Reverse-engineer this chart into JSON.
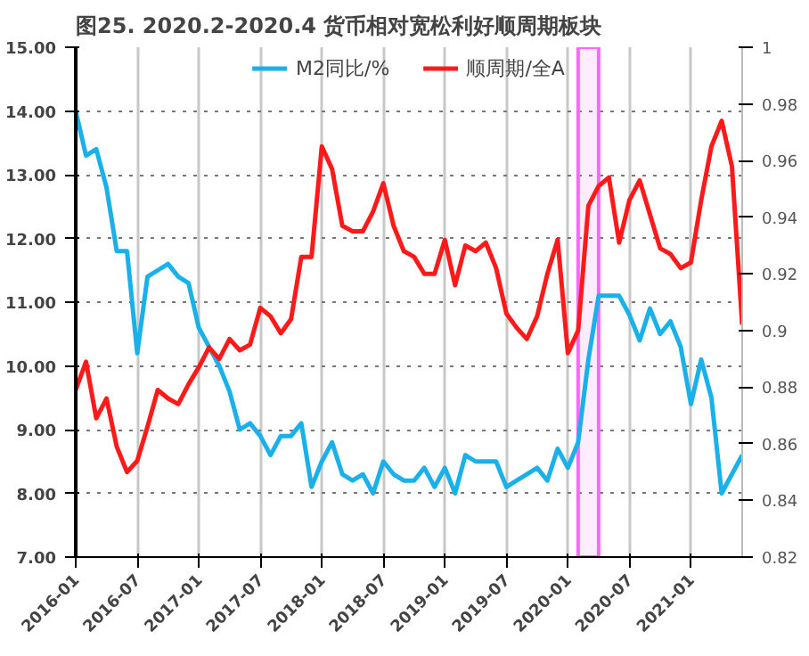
{
  "chart_data": {
    "type": "line",
    "title": "图25. 2020.2-2020.4 货币相对宽松利好顺周期板块",
    "x": [
      "2016-01",
      "2016-02",
      "2016-03",
      "2016-04",
      "2016-05",
      "2016-06",
      "2016-07",
      "2016-08",
      "2016-09",
      "2016-10",
      "2016-11",
      "2016-12",
      "2017-01",
      "2017-02",
      "2017-03",
      "2017-04",
      "2017-05",
      "2017-06",
      "2017-07",
      "2017-08",
      "2017-09",
      "2017-10",
      "2017-11",
      "2017-12",
      "2018-01",
      "2018-02",
      "2018-03",
      "2018-04",
      "2018-05",
      "2018-06",
      "2018-07",
      "2018-08",
      "2018-09",
      "2018-10",
      "2018-11",
      "2018-12",
      "2019-01",
      "2019-02",
      "2019-03",
      "2019-04",
      "2019-05",
      "2019-06",
      "2019-07",
      "2019-08",
      "2019-09",
      "2019-10",
      "2019-11",
      "2019-12",
      "2020-01",
      "2020-02",
      "2020-03",
      "2020-04",
      "2020-05",
      "2020-06",
      "2020-07",
      "2020-08",
      "2020-09",
      "2020-10",
      "2020-11",
      "2020-12",
      "2021-01",
      "2021-02",
      "2021-03",
      "2021-04",
      "2021-05",
      "2021-06"
    ],
    "series": [
      {
        "name": "M2同比/%",
        "color": "#1ab0ea",
        "values": [
          14.0,
          13.3,
          13.4,
          12.8,
          11.8,
          11.8,
          10.2,
          11.4,
          11.5,
          11.6,
          11.4,
          11.3,
          10.6,
          10.3,
          10.0,
          9.6,
          9.0,
          9.1,
          8.9,
          8.6,
          8.9,
          8.9,
          9.1,
          8.1,
          8.5,
          8.8,
          8.3,
          8.2,
          8.3,
          8.0,
          8.5,
          8.3,
          8.2,
          8.2,
          8.4,
          8.1,
          8.4,
          8.0,
          8.6,
          8.5,
          8.5,
          8.5,
          8.1,
          8.2,
          8.3,
          8.4,
          8.2,
          8.7,
          8.4,
          8.8,
          10.1,
          11.1,
          11.1,
          11.1,
          10.8,
          10.4,
          10.9,
          10.5,
          10.7,
          10.3,
          9.4,
          10.1,
          9.5,
          8.0,
          8.3,
          8.6
        ]
      },
      {
        "name": "顺周期/全A",
        "color": "#ff1a1a",
        "axis": "y2",
        "values": [
          0.879,
          0.889,
          0.869,
          0.876,
          0.859,
          0.85,
          0.854,
          0.866,
          0.879,
          0.876,
          0.874,
          0.881,
          0.887,
          0.894,
          0.89,
          0.897,
          0.893,
          0.895,
          0.908,
          0.905,
          0.899,
          0.904,
          0.926,
          0.926,
          0.965,
          0.957,
          0.937,
          0.935,
          0.935,
          0.942,
          0.952,
          0.937,
          0.928,
          0.926,
          0.92,
          0.92,
          0.932,
          0.916,
          0.93,
          0.928,
          0.931,
          0.922,
          0.906,
          0.901,
          0.897,
          0.905,
          0.92,
          0.932,
          0.892,
          0.9,
          0.944,
          0.951,
          0.954,
          0.931,
          0.946,
          0.953,
          0.941,
          0.929,
          0.927,
          0.922,
          0.924,
          0.946,
          0.965,
          0.974,
          0.958,
          0.902
        ]
      }
    ],
    "xlim": [
      "2016-01",
      "2021-06"
    ],
    "xticks": [
      {
        "value": "2016-01",
        "label": "2016-01"
      },
      {
        "value": "2016-07",
        "label": "2016-07"
      },
      {
        "value": "2017-01",
        "label": "2017-01"
      },
      {
        "value": "2017-07",
        "label": "2017-07"
      },
      {
        "value": "2018-01",
        "label": "2018-01"
      },
      {
        "value": "2018-07",
        "label": "2018-07"
      },
      {
        "value": "2019-01",
        "label": "2019-01"
      },
      {
        "value": "2019-07",
        "label": "2019-07"
      },
      {
        "value": "2020-01",
        "label": "2020-01"
      },
      {
        "value": "2020-07",
        "label": "2020-07"
      },
      {
        "value": "2021-01",
        "label": "2021-01"
      }
    ],
    "ylim": [
      7,
      15
    ],
    "yticks": [
      {
        "value": 7,
        "label": "7.00"
      },
      {
        "value": 8,
        "label": "8.00"
      },
      {
        "value": 9,
        "label": "9.00"
      },
      {
        "value": 10,
        "label": "10.00"
      },
      {
        "value": 11,
        "label": "11.00"
      },
      {
        "value": 12,
        "label": "12.00"
      },
      {
        "value": 13,
        "label": "13.00"
      },
      {
        "value": 14,
        "label": "14.00"
      },
      {
        "value": 15,
        "label": "15.00"
      }
    ],
    "y2lim": [
      0.82,
      1
    ],
    "y2ticks": [
      0.82,
      0.84,
      0.86,
      0.88,
      0.9,
      0.92,
      0.94,
      0.96,
      0.98,
      1
    ],
    "bands": [
      {
        "axis": "x",
        "from": "2020-02",
        "to": "2020-04",
        "color": "#ff66ff"
      }
    ],
    "grid": true,
    "legend": "top"
  }
}
